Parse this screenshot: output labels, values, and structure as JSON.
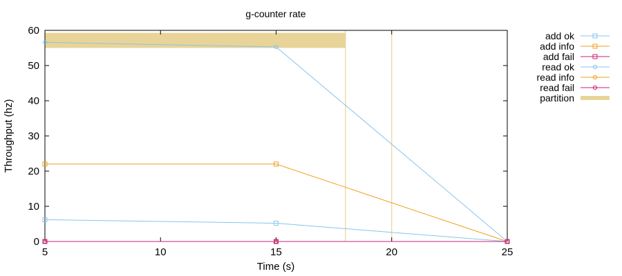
{
  "chart_data": {
    "type": "line",
    "title": "g-counter rate",
    "xlabel": "Time (s)",
    "ylabel": "Throughput (hz)",
    "xlim": [
      5,
      25
    ],
    "ylim": [
      0,
      60
    ],
    "xticks": [
      5,
      10,
      15,
      20,
      25
    ],
    "yticks": [
      0,
      10,
      20,
      30,
      40,
      50,
      60
    ],
    "grid": false,
    "legend_position": "outside-right",
    "series": [
      {
        "name": "add ok",
        "color": "#87c4ec",
        "marker": "square",
        "x": [
          5,
          15,
          25
        ],
        "y": [
          6.2,
          5.2,
          0
        ]
      },
      {
        "name": "add info",
        "color": "#f0a01e",
        "marker": "square",
        "x": [
          5,
          15,
          25
        ],
        "y": [
          22,
          22,
          0
        ]
      },
      {
        "name": "add fail",
        "color": "#cc2277",
        "marker": "square",
        "x": [
          5,
          15,
          25
        ],
        "y": [
          0,
          0,
          0
        ]
      },
      {
        "name": "read ok",
        "color": "#87c4ec",
        "marker": "circle",
        "x": [
          5,
          15,
          25
        ],
        "y": [
          56.6,
          55.3,
          0
        ]
      },
      {
        "name": "read info",
        "color": "#f0a01e",
        "marker": "circle",
        "x": [
          5,
          15,
          25
        ],
        "y": [
          0,
          0,
          0
        ]
      },
      {
        "name": "read fail",
        "color": "#cc2277",
        "marker": "circle",
        "x": [
          5,
          15,
          25
        ],
        "y": [
          0,
          0,
          0
        ]
      }
    ],
    "partition": {
      "name": "partition",
      "color": "#e8d498",
      "band": {
        "x_start": 5,
        "x_end": 18,
        "y_start": 55,
        "y_end": 59.3
      },
      "lines_x": [
        18,
        20
      ]
    }
  }
}
